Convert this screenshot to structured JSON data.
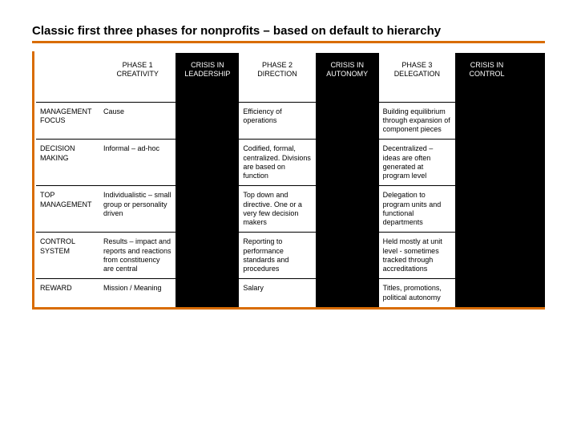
{
  "title": "Classic first three phases for nonprofits – based on default to hierarchy",
  "colors": {
    "accent": "#d96c00",
    "black": "#000000",
    "white": "#ffffff"
  },
  "phases": {
    "p1": "PHASE 1 CREATIVITY",
    "p2": "PHASE 2 DIRECTION",
    "p3": "PHASE 3 DELEGATION"
  },
  "crisis": {
    "c1": "CRISIS IN LEADERSHIP",
    "c2": "CRISIS IN AUTONOMY",
    "c3": "CRISIS IN CONTROL"
  },
  "rows": {
    "r1": {
      "label": "MANAGEMENT FOCUS",
      "p1": "Cause",
      "p2": "Efficiency of operations",
      "p3": "Building equilibrium through expansion of component pieces"
    },
    "r2": {
      "label": "DECISION MAKING",
      "p1": "Informal – ad-hoc",
      "p2": "Codified, formal, centralized. Divisions are based on function",
      "p3": "Decentralized – ideas are often generated at program level"
    },
    "r3": {
      "label": "TOP MANAGEMENT",
      "p1": "Individualistic – small group or personality driven",
      "p2": "Top down and directive. One or a very few decision makers",
      "p3": "Delegation to program units and functional departments"
    },
    "r4": {
      "label": "CONTROL SYSTEM",
      "p1": "Results – impact and reports and reactions from constituency are central",
      "p2": "Reporting to performance standards and procedures",
      "p3": "Held mostly at unit level - sometimes tracked through accreditations"
    },
    "r5": {
      "label": "REWARD",
      "p1": "Mission / Meaning",
      "p2": "Salary",
      "p3": "Titles, promotions, political autonomy"
    }
  }
}
